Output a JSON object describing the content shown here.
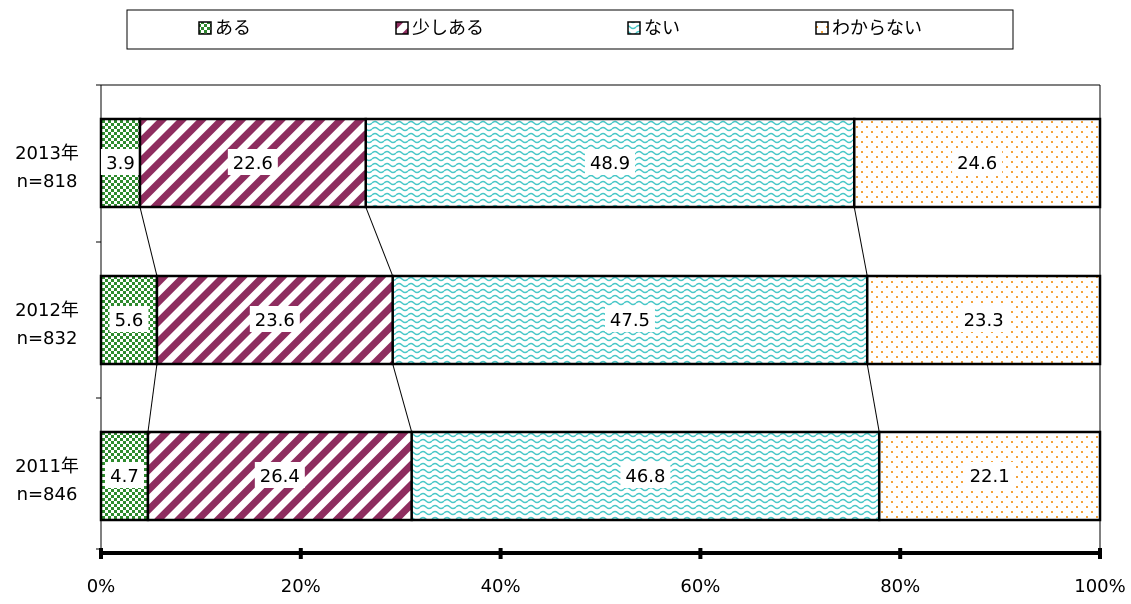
{
  "chart_data": {
    "type": "bar",
    "orientation": "horizontal",
    "stacked": true,
    "categories": [
      {
        "year": "2013年",
        "n": "n=818"
      },
      {
        "year": "2012年",
        "n": "n=832"
      },
      {
        "year": "2011年",
        "n": "n=846"
      }
    ],
    "series": [
      {
        "name": "ある",
        "values": [
          3.9,
          5.6,
          4.7
        ]
      },
      {
        "name": "少しある",
        "values": [
          22.6,
          23.6,
          26.4
        ]
      },
      {
        "name": "ない",
        "values": [
          48.9,
          47.5,
          46.8
        ]
      },
      {
        "name": "わからない",
        "values": [
          24.6,
          23.3,
          22.1
        ]
      }
    ],
    "xlim": [
      0,
      100
    ],
    "x_ticks": [
      "0%",
      "20%",
      "40%",
      "60%",
      "80%",
      "100%"
    ],
    "legend_position": "top",
    "series_connector_lines": true
  }
}
